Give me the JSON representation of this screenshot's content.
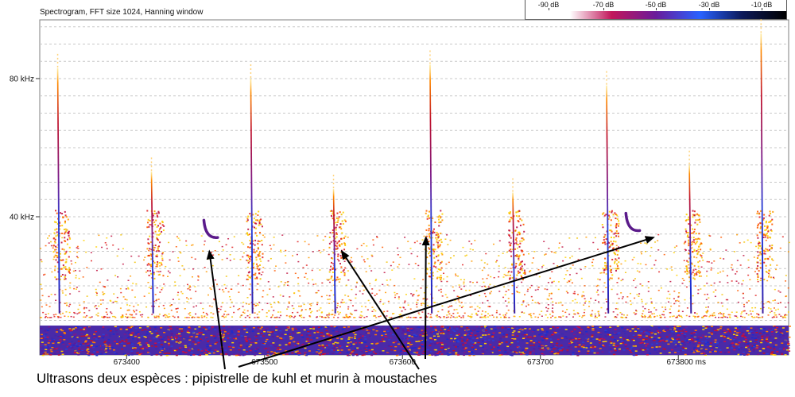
{
  "title": "Spectrogram, FFT size 1024, Hanning window",
  "legend": {
    "labels": [
      "-90 dB",
      "-70 dB",
      "-50 dB",
      "-30 dB",
      "-10 dB"
    ],
    "gradient": [
      "#ffffff",
      "#ffffff",
      "#c2185b",
      "#6a1b9a",
      "#2962ff",
      "#0d1a5a",
      "#000000"
    ]
  },
  "caption": "Ultrasons deux espèces : pipistrelle de kuhl et murin à moustaches",
  "chart_data": {
    "type": "heatmap",
    "title": "Spectrogram, FFT size 1024, Hanning window",
    "xlabel": "",
    "ylabel": "",
    "x_ticks": [
      "673400",
      "673500",
      "673600",
      "673700",
      "673800 ms"
    ],
    "x_tick_values": [
      673400,
      673500,
      673600,
      673700,
      673800
    ],
    "y_ticks": [
      "80 kHz",
      "40 kHz"
    ],
    "y_tick_values": [
      80,
      40
    ],
    "xlim": [
      673337,
      673880
    ],
    "ylim": [
      0,
      97
    ],
    "grid": true,
    "pipistrelle_calls": [
      {
        "t": 673350,
        "f_top": 83,
        "f_bottom": 12
      },
      {
        "t": 673418,
        "f_top": 53,
        "f_bottom": 12
      },
      {
        "t": 673490,
        "f_top": 80,
        "f_bottom": 12
      },
      {
        "t": 673550,
        "f_top": 48,
        "f_bottom": 12
      },
      {
        "t": 673620,
        "f_top": 84,
        "f_bottom": 12
      },
      {
        "t": 673680,
        "f_top": 47,
        "f_bottom": 12
      },
      {
        "t": 673748,
        "f_top": 78,
        "f_bottom": 12
      },
      {
        "t": 673808,
        "f_top": 55,
        "f_bottom": 12
      },
      {
        "t": 673860,
        "f_top": 93,
        "f_bottom": 12
      }
    ],
    "murin_calls": [
      {
        "t": 673460,
        "f_start": 39,
        "f_end": 34
      },
      {
        "t": 673766,
        "f_start": 41,
        "f_end": 36
      }
    ],
    "annotation_targets": [
      {
        "t": 673460,
        "f": 30
      },
      {
        "t": 673556,
        "f": 30
      },
      {
        "t": 673617,
        "f": 34
      },
      {
        "t": 673782,
        "f": 34
      }
    ]
  }
}
